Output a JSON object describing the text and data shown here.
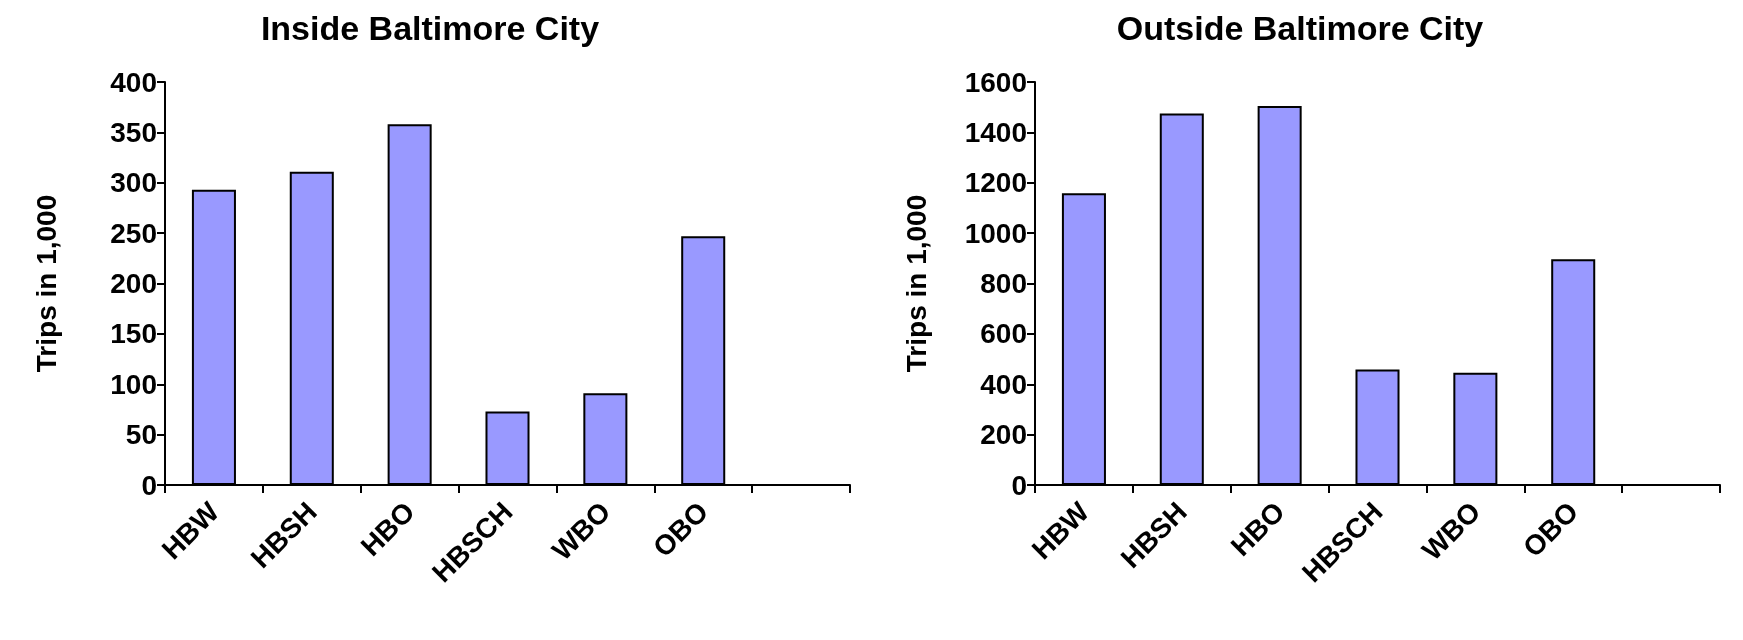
{
  "chart_data": [
    {
      "type": "bar",
      "title": "Inside Baltimore City",
      "ylabel": "Trips in 1,000",
      "categories": [
        "HBW",
        "HBSH",
        "HBO",
        "HBSCH",
        "WBO",
        "OBO",
        null
      ],
      "values": [
        293,
        311,
        358,
        73,
        91,
        247,
        null
      ],
      "color": "#9999ff",
      "ylim": [
        0,
        400
      ],
      "yticks": [
        0,
        50,
        100,
        150,
        200,
        250,
        300,
        350,
        400
      ],
      "grid": false
    },
    {
      "type": "bar",
      "title": "Outside Baltimore City",
      "ylabel": "Trips in 1,000",
      "categories": [
        "HBW",
        "HBSH",
        "HBO",
        "HBSCH",
        "WBO",
        "OBO",
        null
      ],
      "values": [
        1158,
        1475,
        1505,
        459,
        446,
        896,
        null
      ],
      "color": "#9999ff",
      "ylim": [
        0,
        1600
      ],
      "yticks": [
        0,
        200,
        400,
        600,
        800,
        1000,
        1200,
        1400,
        1600
      ],
      "grid": false
    }
  ]
}
